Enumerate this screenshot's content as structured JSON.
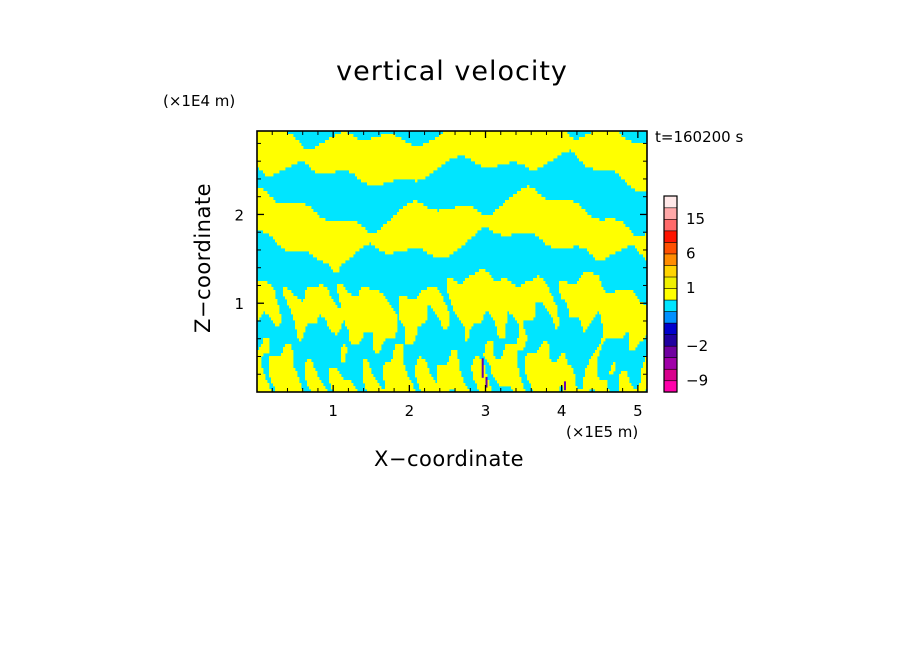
{
  "chart_data": {
    "type": "heatmap",
    "title": "vertical velocity",
    "xlabel": "X−coordinate",
    "ylabel": "Z−coordinate",
    "x_unit_label": "(×1E5 m)",
    "y_unit_label": "(×1E4 m)",
    "time_label": "t=160200 s",
    "xlim": [
      0,
      5.12
    ],
    "ylim": [
      0,
      2.94
    ],
    "xticks": [
      1,
      2,
      3,
      4,
      5
    ],
    "xtick_labels": [
      "1",
      "2",
      "3",
      "4",
      "5"
    ],
    "yticks": [
      1,
      2
    ],
    "ytick_labels": [
      "1",
      "2"
    ],
    "field_colors": {
      "negative": "#00e5ff",
      "positive": "#ffff00",
      "strong_negative": "#6a00b0"
    },
    "colorbar": {
      "levels": [
        -12,
        -9,
        -6,
        -4,
        -2,
        -1,
        -0.5,
        0,
        0.5,
        1,
        2,
        4,
        6,
        9,
        12,
        15,
        20,
        25
      ],
      "colors": [
        "#ff00aa",
        "#d8008c",
        "#a000a8",
        "#7000a0",
        "#2000a0",
        "#0000cc",
        "#0090ff",
        "#00e5ff",
        "#ffff00",
        "#f0f000",
        "#ffd400",
        "#ff8c00",
        "#ff5000",
        "#ff1400",
        "#ff6a6a",
        "#ffa8a8",
        "#ffe8e8"
      ],
      "tick_values": [
        -9,
        -2,
        1,
        6,
        15
      ],
      "tick_labels": [
        "−9",
        "−2",
        "1",
        "6",
        "15"
      ]
    }
  }
}
